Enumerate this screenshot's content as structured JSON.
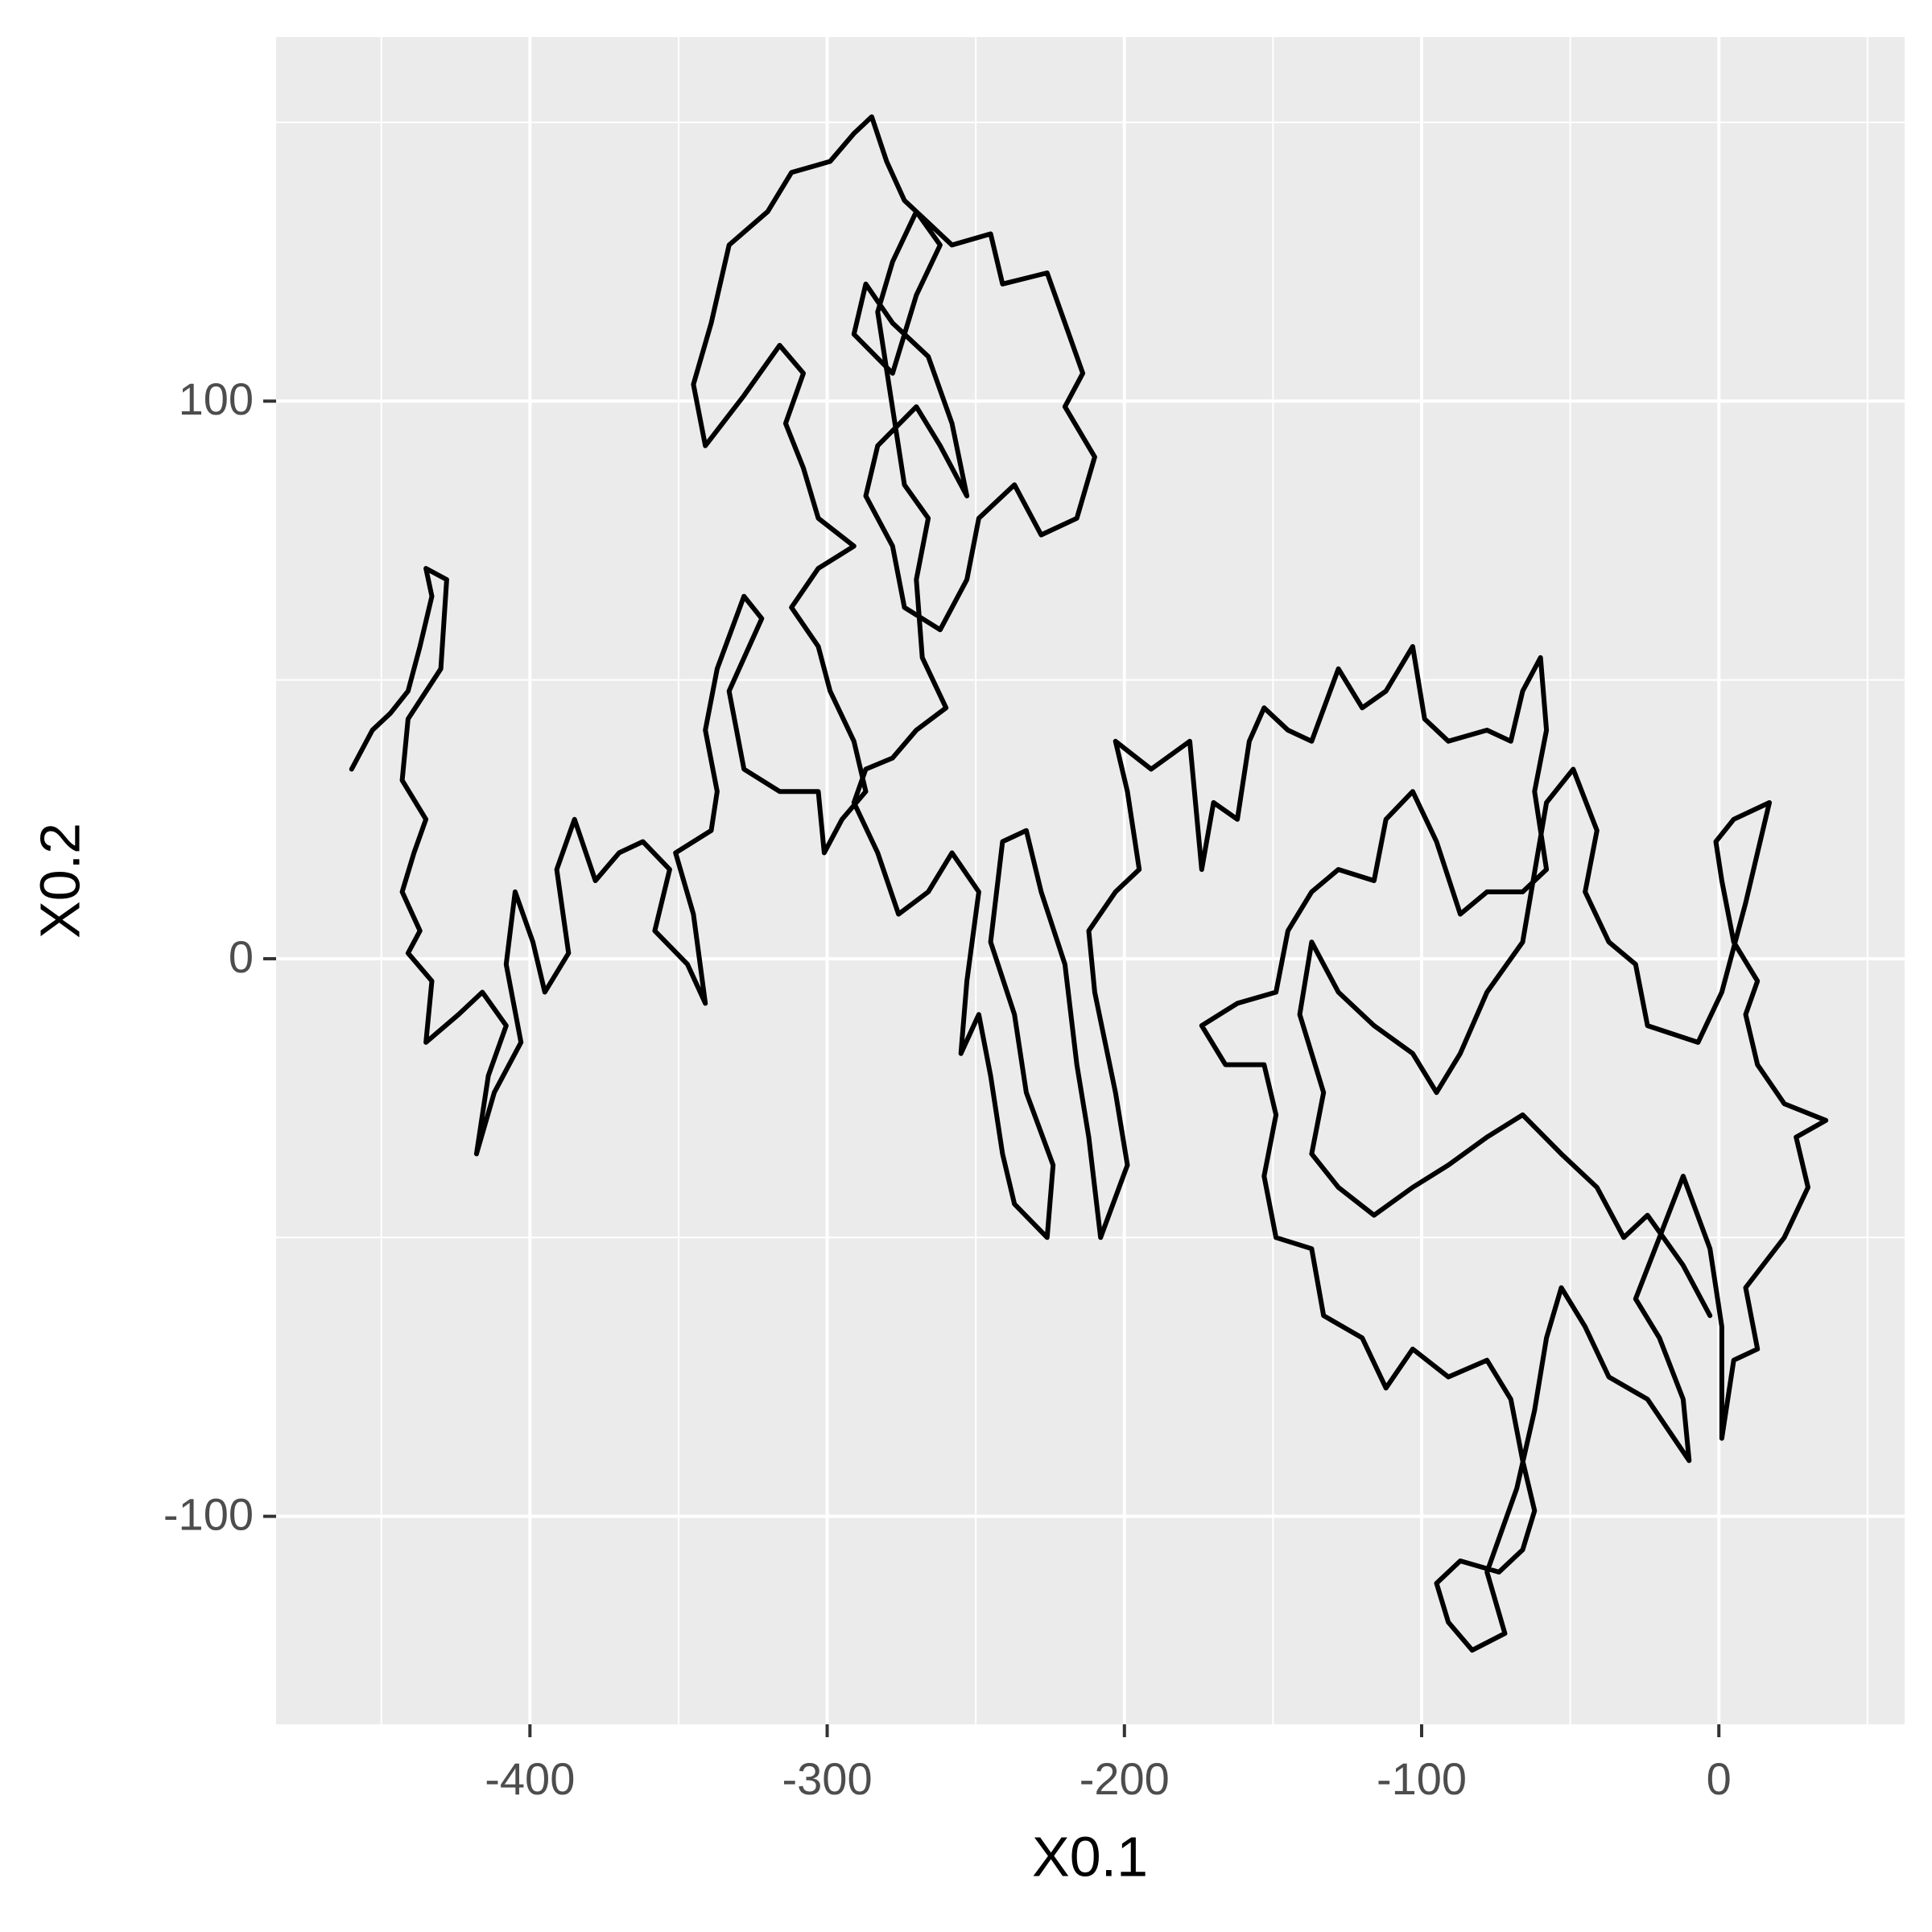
{
  "chart_data": {
    "type": "line",
    "x_label": "X0.1",
    "y_label": "X0.2",
    "color": "#000000",
    "xlim": [
      -485.4,
      62.5
    ],
    "ylim": [
      -137.3,
      165.3
    ],
    "xticks": [
      -400,
      -300,
      -200,
      -100,
      0
    ],
    "yticks": [
      -100,
      0,
      100
    ],
    "x_minor_grid": [
      -450,
      -350,
      -250,
      -150,
      -50,
      50
    ],
    "y_minor_grid": [
      -50,
      50,
      150
    ],
    "grid": true,
    "background": "#ebebeb",
    "x": [
      -460,
      -453,
      -447,
      -441,
      -437,
      -433,
      -435,
      -428,
      -430,
      -441,
      -443,
      -435,
      -439,
      -443,
      -437,
      -441,
      -433,
      -435,
      -424,
      -416,
      -408,
      -414,
      -418,
      -412,
      -403,
      -408,
      -405,
      -399,
      -395,
      -387,
      -391,
      -385,
      -378,
      -370,
      -362,
      -353,
      -358,
      -347,
      -341,
      -345,
      -351,
      -339,
      -337,
      -341,
      -337,
      -328,
      -322,
      -333,
      -328,
      -316,
      -303,
      -301,
      -295,
      -287,
      -291,
      -299,
      -303,
      -312,
      -303,
      -291,
      -303,
      -308,
      -314,
      -308,
      -316,
      -328,
      -341,
      -345,
      -339,
      -333,
      -320,
      -312,
      -299,
      -291,
      -285,
      -280,
      -274,
      -266,
      -258,
      -245,
      -241,
      -226,
      -220,
      -214,
      -220,
      -210,
      -216,
      -228,
      -237,
      -249,
      -253,
      -262,
      -274,
      -278,
      -287,
      -283,
      -270,
      -262,
      -253,
      -258,
      -266,
      -278,
      -287,
      -291,
      -278,
      -270,
      -262,
      -270,
      -278,
      -283,
      -274,
      -266,
      -270,
      -268,
      -260,
      -270,
      -278,
      -287,
      -291,
      -283,
      -276,
      -266,
      -258,
      -249,
      -253,
      -255,
      -249,
      -245,
      -241,
      -237,
      -226,
      -224,
      -233,
      -237,
      -245,
      -241,
      -233,
      -228,
      -220,
      -216,
      -212,
      -208,
      -199,
      -203,
      -210,
      -212,
      -203,
      -195,
      -199,
      -203,
      -191,
      -178,
      -174,
      -170,
      -162,
      -158,
      -153,
      -145,
      -137,
      -128,
      -120,
      -112,
      -103,
      -99,
      -91,
      -78,
      -70,
      -66,
      -60,
      -58,
      -62,
      -58,
      -66,
      -78,
      -87,
      -95,
      -103,
      -112,
      -116,
      -128,
      -137,
      -145,
      -149,
      -162,
      -174,
      -166,
      -153,
      -149,
      -153,
      -149,
      -137,
      -133,
      -120,
      -112,
      -103,
      -91,
      -78,
      -70,
      -66,
      -62,
      -66,
      -74,
      -87,
      -95,
      -91,
      -83,
      -72,
      -78,
      -68,
      -62,
      -58,
      -53,
      -45,
      -37,
      -24,
      -10,
      -12,
      -20,
      -28,
      -20,
      -12,
      -3,
      1,
      1,
      5,
      13,
      9,
      22,
      30,
      26,
      36,
      22,
      13,
      9,
      13,
      5,
      1,
      -1,
      5,
      17,
      13,
      9,
      1,
      -7,
      -24,
      -28,
      -37,
      -45,
      -41,
      -49,
      -58,
      -66,
      -78,
      -87,
      -95,
      -103,
      -116,
      -128,
      -137,
      -141,
      -133,
      -137,
      -128,
      -116,
      -103,
      -91,
      -78,
      -66,
      -53,
      -41,
      -32,
      -24,
      -12,
      -3
    ],
    "values": [
      34,
      41,
      44,
      48,
      56,
      65,
      70,
      68,
      52,
      43,
      32,
      25,
      19,
      12,
      5,
      1,
      -4,
      -15,
      -10,
      -6,
      -12,
      -21,
      -35,
      -24,
      -15,
      -1,
      12,
      3,
      -6,
      1,
      16,
      25,
      14,
      19,
      21,
      16,
      5,
      -1,
      -8,
      8,
      19,
      23,
      30,
      41,
      52,
      65,
      61,
      48,
      34,
      30,
      30,
      19,
      25,
      30,
      39,
      48,
      56,
      63,
      70,
      74,
      79,
      88,
      96,
      105,
      110,
      101,
      92,
      103,
      114,
      128,
      134,
      141,
      143,
      148,
      151,
      143,
      136,
      132,
      128,
      130,
      121,
      123,
      114,
      105,
      99,
      90,
      79,
      76,
      85,
      79,
      68,
      59,
      63,
      74,
      83,
      92,
      99,
      92,
      83,
      96,
      108,
      114,
      121,
      112,
      105,
      119,
      128,
      134,
      125,
      116,
      85,
      79,
      68,
      54,
      45,
      41,
      36,
      34,
      28,
      19,
      8,
      12,
      19,
      12,
      -4,
      -17,
      -10,
      -21,
      -35,
      -44,
      -50,
      -37,
      -24,
      -10,
      3,
      21,
      23,
      12,
      -1,
      -19,
      -32,
      -50,
      -37,
      -24,
      -6,
      5,
      12,
      16,
      30,
      39,
      34,
      39,
      16,
      28,
      25,
      39,
      45,
      41,
      39,
      52,
      45,
      48,
      56,
      43,
      39,
      41,
      39,
      48,
      54,
      41,
      30,
      16,
      12,
      12,
      8,
      21,
      30,
      25,
      14,
      16,
      12,
      5,
      -6,
      -8,
      -12,
      -19,
      -19,
      -28,
      -39,
      -50,
      -52,
      -64,
      -68,
      -77,
      -70,
      -75,
      -72,
      -79,
      -90,
      -99,
      -106,
      -110,
      -108,
      -112,
      -119,
      -124,
      -121,
      -110,
      -95,
      -81,
      -68,
      -59,
      -66,
      -75,
      -79,
      -90,
      -79,
      -68,
      -61,
      -50,
      -39,
      -52,
      -66,
      -86,
      -72,
      -70,
      -59,
      -50,
      -41,
      -32,
      -29,
      -26,
      -19,
      -10,
      -4,
      3,
      14,
      21,
      25,
      28,
      19,
      10,
      -6,
      -15,
      -12,
      -1,
      3,
      12,
      23,
      34,
      28,
      3,
      -6,
      -17,
      -24,
      -17,
      -12,
      -6,
      3,
      -10,
      -24,
      -35,
      -41,
      -46,
      -41,
      -37,
      -32,
      -28,
      -35,
      -41,
      -50,
      -46,
      -55,
      -64
    ]
  }
}
